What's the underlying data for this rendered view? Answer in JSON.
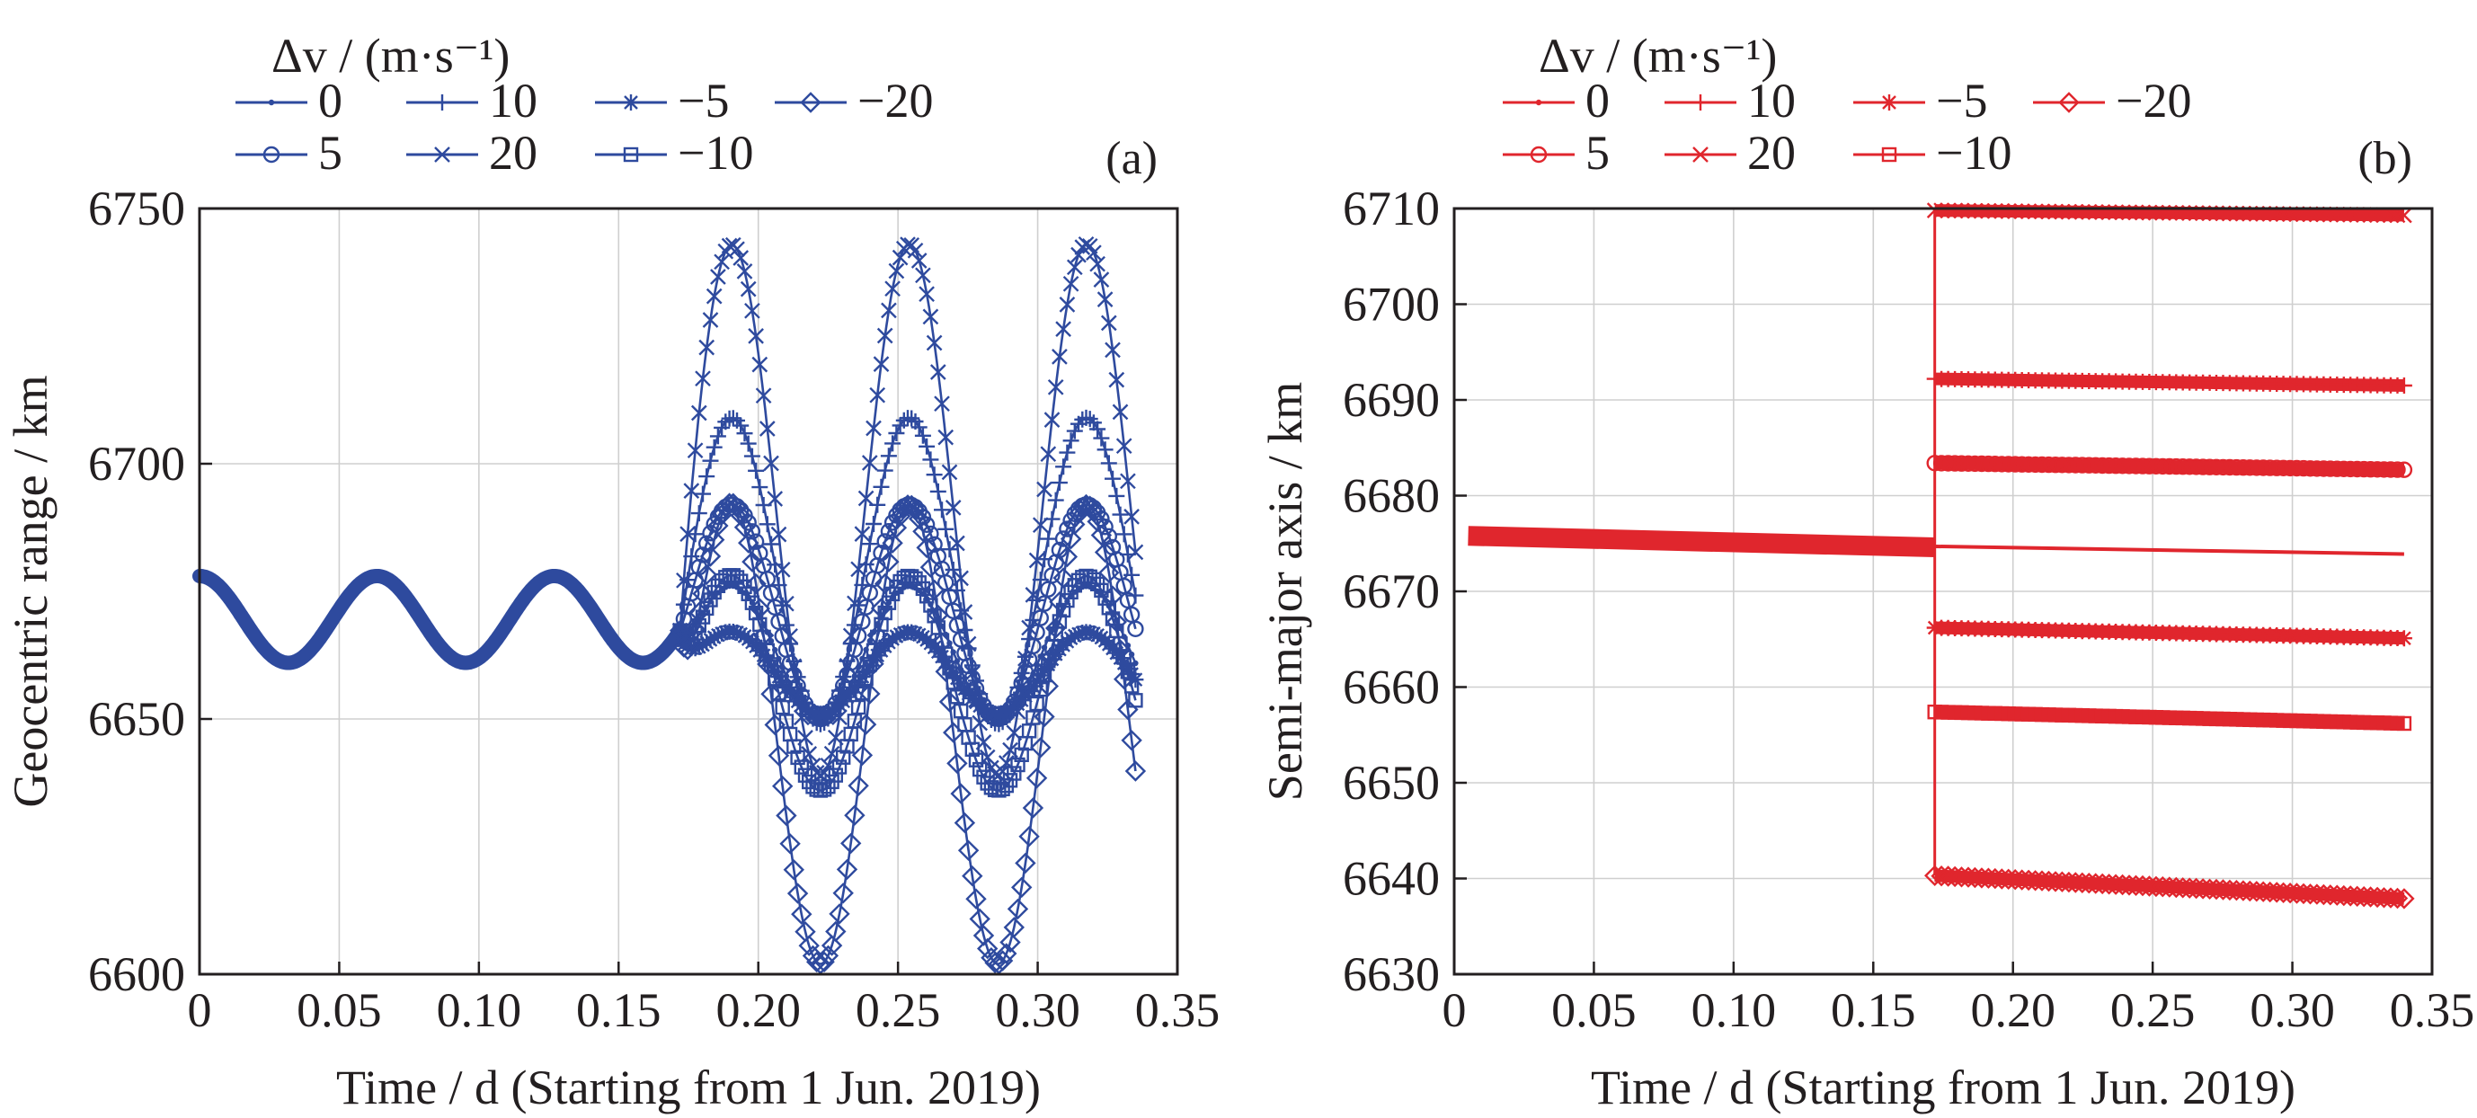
{
  "chart_data": [
    {
      "type": "line",
      "panel_label": "(a)",
      "legend_title": "Δv / (m·s⁻¹)",
      "xlabel": "Time / d (Starting from 1 Jun. 2019)",
      "ylabel": "Geocentric range / km",
      "xlim": [
        0,
        0.35
      ],
      "ylim": [
        6600,
        6750
      ],
      "xticks": [
        "0",
        "0.05",
        "0.10",
        "0.15",
        "0.20",
        "0.25",
        "0.30",
        "0.35"
      ],
      "yticks": [
        "6600",
        "6650",
        "6700",
        "6750"
      ],
      "grid": true,
      "color": "#2e4a9e",
      "maneuver_time": 0.172,
      "period": 0.0635,
      "base": {
        "mean": 6669.5,
        "amplitude": 8.5
      },
      "series": [
        {
          "name": "0",
          "marker": "dot",
          "mean_after": 6663,
          "amplitude_after": 13
        },
        {
          "name": "5",
          "marker": "circle",
          "mean_after": 6671,
          "amplitude_after": 21
        },
        {
          "name": "10",
          "marker": "plus",
          "mean_after": 6679,
          "amplitude_after": 30
        },
        {
          "name": "20",
          "marker": "x",
          "mean_after": 6691,
          "amplitude_after": 52
        },
        {
          "name": "−5",
          "marker": "asterisk",
          "mean_after": 6659,
          "amplitude_after": 8
        },
        {
          "name": "−10",
          "marker": "square",
          "mean_after": 6657,
          "amplitude_after": 21
        },
        {
          "name": "−20",
          "marker": "diamond",
          "mean_after": 6647,
          "amplitude_after": 45
        }
      ]
    },
    {
      "type": "line",
      "panel_label": "(b)",
      "legend_title": "Δv / (m·s⁻¹)",
      "xlabel": "Time / d (Starting from 1 Jun. 2019)",
      "ylabel": "Semi-major axis / km",
      "xlim": [
        0,
        0.35
      ],
      "ylim": [
        6630,
        6710
      ],
      "xticks": [
        "0",
        "0.05",
        "0.10",
        "0.15",
        "0.20",
        "0.25",
        "0.30",
        "0.35"
      ],
      "yticks": [
        "6630",
        "6640",
        "6650",
        "6660",
        "6670",
        "6680",
        "6690",
        "6700",
        "6710"
      ],
      "grid": true,
      "color": "#e0262d",
      "maneuver_time": 0.172,
      "pre_maneuver": {
        "x": [
          0.005,
          0.172
        ],
        "y": [
          6675.8,
          6674.6
        ]
      },
      "series": [
        {
          "name": "0",
          "marker": "dot",
          "x": [
            0.172,
            0.34
          ],
          "y": [
            6674.7,
            6673.9
          ]
        },
        {
          "name": "5",
          "marker": "circle",
          "x": [
            0.172,
            0.34
          ],
          "y": [
            6683.4,
            6682.7
          ]
        },
        {
          "name": "10",
          "marker": "plus",
          "x": [
            0.172,
            0.34
          ],
          "y": [
            6692.2,
            6691.5
          ]
        },
        {
          "name": "20",
          "marker": "x",
          "x": [
            0.172,
            0.34
          ],
          "y": [
            6709.8,
            6709.3
          ]
        },
        {
          "name": "−5",
          "marker": "asterisk",
          "x": [
            0.172,
            0.34
          ],
          "y": [
            6666.2,
            6665.1
          ]
        },
        {
          "name": "−10",
          "marker": "square",
          "x": [
            0.172,
            0.34
          ],
          "y": [
            6657.4,
            6656.2
          ]
        },
        {
          "name": "−20",
          "marker": "diamond",
          "x": [
            0.172,
            0.34
          ],
          "y": [
            6640.3,
            6637.9
          ]
        }
      ]
    }
  ]
}
